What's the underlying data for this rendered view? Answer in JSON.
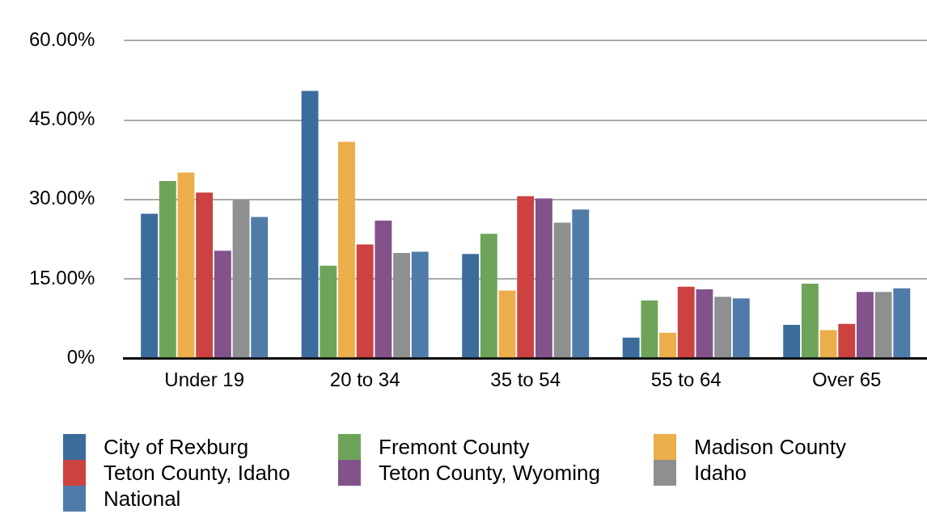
{
  "chart_data": {
    "type": "bar",
    "categories": [
      "Under 19",
      "20 to 34",
      "35 to 54",
      "55 to 64",
      "Over 65"
    ],
    "series": [
      {
        "name": "City of Rexburg",
        "color": "#3c6c9c",
        "values": [
          27.3,
          50.5,
          19.7,
          3.9,
          6.3
        ]
      },
      {
        "name": "Fremont County",
        "color": "#6ea459",
        "values": [
          33.5,
          17.5,
          23.5,
          10.9,
          14.1
        ]
      },
      {
        "name": "Madison County",
        "color": "#ebae4b",
        "values": [
          35.1,
          40.9,
          12.8,
          4.8,
          5.3
        ]
      },
      {
        "name": "Teton County, Idaho",
        "color": "#cb4240",
        "values": [
          31.3,
          21.5,
          30.6,
          13.5,
          6.5
        ]
      },
      {
        "name": "Teton County, Wyoming",
        "color": "#83528b",
        "values": [
          20.3,
          26.0,
          30.2,
          13.0,
          12.5
        ]
      },
      {
        "name": "Idaho",
        "color": "#8e908f",
        "values": [
          29.9,
          19.9,
          25.6,
          11.6,
          12.5
        ]
      },
      {
        "name": "National",
        "color": "#4f7ba9",
        "values": [
          26.7,
          20.1,
          28.1,
          11.3,
          13.2
        ]
      }
    ],
    "ylim": [
      0,
      60
    ],
    "yticks": [
      {
        "value": 0,
        "label": "0%"
      },
      {
        "value": 15,
        "label": "15.00%"
      },
      {
        "value": 30,
        "label": "30.00%"
      },
      {
        "value": 45,
        "label": "45.00%"
      },
      {
        "value": 60,
        "label": "60.00%"
      }
    ],
    "grid": "y",
    "legend": "bottom"
  }
}
